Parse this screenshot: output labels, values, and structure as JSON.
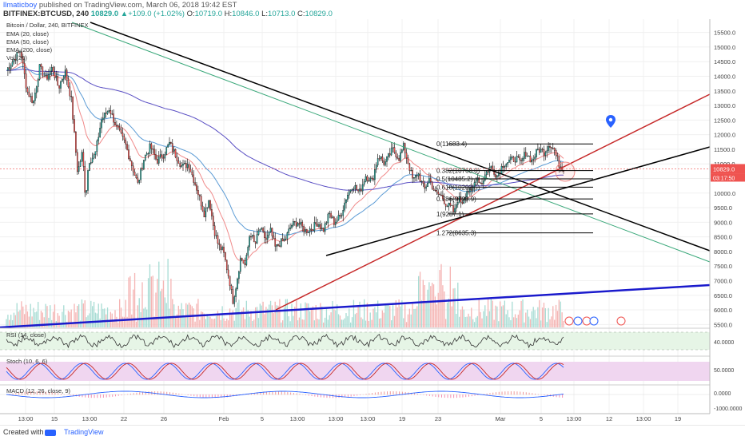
{
  "header": {
    "author": "llmaticboy",
    "published": "published on TradingView.com, March 06, 2018 19:42 EST",
    "symbol": "BITFINEX:BTCUSD, 240",
    "price": "10829.0",
    "change": "+109.0 (+1.02%)",
    "o_label": "O:",
    "o": "10719.0",
    "h_label": "H:",
    "h": "10846.0",
    "l_label": "L:",
    "l": "10713.0",
    "c_label": "C:",
    "c": "10829.0"
  },
  "legend": {
    "title": "Bitcoin / Dollar, 240, BITFINEX",
    "ema20": "EMA (20, close)",
    "ema50": "EMA (50, close)",
    "ema200": "EMA (200, close)",
    "vol": "Vol (20)",
    "rsi": "RSI (14, close)",
    "stoch": "Stoch (10, 6, 6)",
    "macd": "MACD (12, 26, close, 9)"
  },
  "price_badge": {
    "price": "10829.0",
    "countdown": "03:17:50"
  },
  "fib_labels": [
    "0(11683.4)",
    "0.382(10768.0)",
    "0.5(10485.2)",
    "0.618(10202.5)",
    "0.786(9799.9)",
    "1(9287.1)",
    "1.272(8635.3)"
  ],
  "x_axis_labels": [
    "13:00",
    "15",
    "13:00",
    "22",
    "26",
    "Feb",
    "5",
    "13:00",
    "13:00",
    "13:00",
    "19",
    "23",
    "Mar",
    "5",
    "13:00",
    "12",
    "13:00",
    "19"
  ],
  "rsi_axis_label": "40.0000",
  "stoch_axis_label": "50.0000",
  "macd_axis_labels": [
    "0.0000",
    "-1000.0000"
  ],
  "footer": {
    "created": "Created with",
    "brand": "TradingView"
  },
  "colors": {
    "up": "#26a69a",
    "down": "#ef5350",
    "ema20": "#f08a8a",
    "ema50": "#5b9bd5",
    "ema200": "#5a4fc4",
    "trend_black": "#000000",
    "trend_red": "#c62828",
    "trend_blue": "#1a1acc",
    "trend_green": "#3aa87a",
    "rsi_fill": "#e6f5e6",
    "stoch_fill": "#f0d6f0"
  },
  "chart_data": {
    "type": "candlestick",
    "title": "Bitcoin / Dollar, 240, BITFINEX",
    "y_axis_ticks": [
      15500,
      15000,
      14500,
      14000,
      13500,
      13000,
      12500,
      12000,
      11500,
      11000,
      10500,
      10000,
      9500,
      9000,
      8500,
      8000,
      7500,
      7000,
      6500,
      6000,
      5500
    ],
    "y_axis_labels": [
      "15500.0",
      "15000.0",
      "14500.0",
      "14000.0",
      "13500.0",
      "13000.0",
      "12500.0",
      "12000.0",
      "11500.0",
      "11000.0",
      "10500.0",
      "10000.0",
      "9500.0",
      "9000.0",
      "8500.0",
      "8000.0",
      "7500.0",
      "7000.0",
      "6500.0",
      "6000.0",
      "5500.0"
    ],
    "y_range": [
      5400,
      15900
    ],
    "bar_count": 370,
    "close_path": [
      [
        0,
        14200
      ],
      [
        10,
        14600
      ],
      [
        18,
        14900
      ],
      [
        26,
        13500
      ],
      [
        34,
        13100
      ],
      [
        42,
        14300
      ],
      [
        50,
        13900
      ],
      [
        58,
        14300
      ],
      [
        66,
        13600
      ],
      [
        74,
        14200
      ],
      [
        82,
        13200
      ],
      [
        90,
        10700
      ],
      [
        96,
        11400
      ],
      [
        100,
        9800
      ],
      [
        104,
        11100
      ],
      [
        112,
        11300
      ],
      [
        120,
        12500
      ],
      [
        130,
        12900
      ],
      [
        140,
        12200
      ],
      [
        150,
        11700
      ],
      [
        158,
        11000
      ],
      [
        166,
        10300
      ],
      [
        174,
        11200
      ],
      [
        182,
        11600
      ],
      [
        190,
        11100
      ],
      [
        198,
        11300
      ],
      [
        206,
        11700
      ],
      [
        214,
        11300
      ],
      [
        222,
        10900
      ],
      [
        230,
        11000
      ],
      [
        240,
        10200
      ],
      [
        250,
        9300
      ],
      [
        256,
        9800
      ],
      [
        262,
        8800
      ],
      [
        268,
        8200
      ],
      [
        274,
        8000
      ],
      [
        278,
        7500
      ],
      [
        282,
        7000
      ],
      [
        286,
        6300
      ],
      [
        290,
        6800
      ],
      [
        296,
        7800
      ],
      [
        302,
        7500
      ],
      [
        308,
        8700
      ],
      [
        314,
        8200
      ],
      [
        320,
        8800
      ],
      [
        328,
        8400
      ],
      [
        334,
        8700
      ],
      [
        340,
        8100
      ],
      [
        346,
        8300
      ],
      [
        352,
        8400
      ],
      [
        360,
        8900
      ],
      [
        368,
        9000
      ],
      [
        378,
        8700
      ],
      [
        386,
        8800
      ],
      [
        394,
        9000
      ],
      [
        400,
        8700
      ],
      [
        408,
        9300
      ],
      [
        414,
        9000
      ],
      [
        422,
        9200
      ],
      [
        430,
        9900
      ],
      [
        438,
        10300
      ],
      [
        446,
        10000
      ],
      [
        454,
        10600
      ],
      [
        462,
        10400
      ],
      [
        470,
        11300
      ],
      [
        478,
        11000
      ],
      [
        488,
        11500
      ],
      [
        496,
        11200
      ],
      [
        502,
        11600
      ],
      [
        508,
        11000
      ],
      [
        514,
        10400
      ],
      [
        520,
        10700
      ],
      [
        528,
        10100
      ],
      [
        534,
        10500
      ],
      [
        542,
        10000
      ],
      [
        550,
        9900
      ],
      [
        556,
        9600
      ],
      [
        562,
        9500
      ],
      [
        566,
        9300
      ],
      [
        570,
        9800
      ],
      [
        576,
        9700
      ],
      [
        582,
        10100
      ],
      [
        588,
        10000
      ],
      [
        594,
        10600
      ],
      [
        600,
        10300
      ],
      [
        606,
        10700
      ],
      [
        612,
        10900
      ],
      [
        620,
        10600
      ],
      [
        628,
        11000
      ],
      [
        636,
        11100
      ],
      [
        644,
        11200
      ],
      [
        650,
        11000
      ],
      [
        656,
        11400
      ],
      [
        664,
        11100
      ],
      [
        672,
        11500
      ],
      [
        680,
        11400
      ],
      [
        686,
        11700
      ],
      [
        692,
        11500
      ],
      [
        698,
        11000
      ],
      [
        704,
        10829
      ]
    ],
    "series": [
      {
        "name": "EMA (20, close)"
      },
      {
        "name": "EMA (50, close)"
      },
      {
        "name": "EMA (200, close)"
      }
    ],
    "fibonacci": {
      "levels": [
        {
          "ratio": 0,
          "price": 11683.4
        },
        {
          "ratio": 0.382,
          "price": 10768.0
        },
        {
          "ratio": 0.5,
          "price": 10485.2
        },
        {
          "ratio": 0.618,
          "price": 10202.5
        },
        {
          "ratio": 0.786,
          "price": 9799.9
        },
        {
          "ratio": 1,
          "price": 9287.1
        },
        {
          "ratio": 1.272,
          "price": 8635.3
        }
      ]
    },
    "last_price": 10829.0,
    "x_tick_labels": [
      "13:00",
      "15",
      "13:00",
      "22",
      "26",
      "Feb",
      "5",
      "13:00",
      "13:00",
      "13:00",
      "19",
      "23",
      "Mar",
      "5",
      "13:00",
      "12",
      "13:00",
      "19"
    ]
  }
}
